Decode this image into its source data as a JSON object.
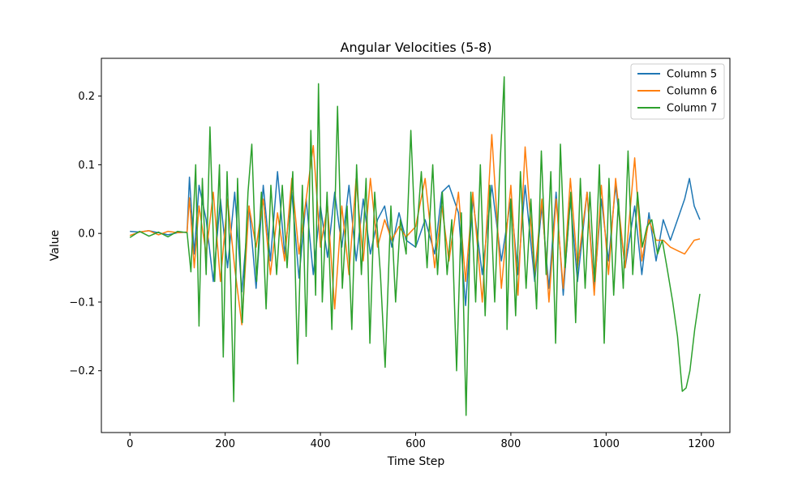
{
  "chart_data": {
    "type": "line",
    "title": "Angular Velocities (5-8)",
    "xlabel": "Time Step",
    "ylabel": "Value",
    "xlim": [
      -60,
      1260
    ],
    "ylim": [
      -0.29,
      0.255
    ],
    "xticks": [
      0,
      200,
      400,
      600,
      800,
      1000,
      1200
    ],
    "yticks": [
      -0.2,
      -0.1,
      0.0,
      0.1,
      0.2
    ],
    "xtick_labels": [
      "0",
      "200",
      "400",
      "600",
      "800",
      "1000",
      "1200"
    ],
    "ytick_labels": [
      "−0.2",
      "−0.1",
      "0.0",
      "0.1",
      "0.2"
    ],
    "grid": false,
    "legend_position": "top-right",
    "series": [
      {
        "name": "Column 5",
        "color": "#1f77b4",
        "x": [
          0,
          20,
          40,
          60,
          80,
          100,
          120,
          125,
          135,
          145,
          160,
          175,
          190,
          205,
          220,
          235,
          250,
          265,
          280,
          295,
          310,
          325,
          340,
          355,
          370,
          385,
          400,
          415,
          430,
          445,
          460,
          475,
          490,
          505,
          520,
          535,
          550,
          565,
          580,
          600,
          620,
          640,
          655,
          670,
          690,
          705,
          720,
          740,
          760,
          780,
          800,
          815,
          830,
          850,
          865,
          880,
          895,
          910,
          925,
          940,
          960,
          975,
          990,
          1005,
          1020,
          1040,
          1060,
          1075,
          1090,
          1105,
          1120,
          1135,
          1150,
          1165,
          1175,
          1185,
          1197
        ],
        "y": [
          0.003,
          0.002,
          0.004,
          0.001,
          -0.002,
          0.001,
          0.002,
          0.082,
          -0.03,
          0.07,
          0.02,
          -0.07,
          0.05,
          -0.05,
          0.06,
          -0.085,
          0.04,
          -0.08,
          0.07,
          -0.04,
          0.09,
          -0.03,
          0.06,
          -0.065,
          0.05,
          -0.06,
          0.04,
          -0.035,
          0.06,
          -0.02,
          0.07,
          -0.04,
          0.05,
          -0.03,
          0.02,
          0.04,
          -0.02,
          0.03,
          -0.01,
          -0.02,
          0.02,
          -0.03,
          0.06,
          0.07,
          0.03,
          -0.105,
          0.05,
          -0.06,
          0.07,
          -0.04,
          0.05,
          -0.06,
          0.07,
          -0.07,
          0.04,
          -0.08,
          0.06,
          -0.09,
          0.05,
          -0.07,
          0.06,
          -0.08,
          0.05,
          -0.04,
          0.07,
          -0.05,
          0.04,
          -0.06,
          0.03,
          -0.04,
          0.02,
          -0.01,
          0.02,
          0.05,
          0.08,
          0.04,
          0.02
        ]
      },
      {
        "name": "Column 6",
        "color": "#ff7f0e",
        "x": [
          0,
          20,
          40,
          60,
          80,
          100,
          120,
          125,
          135,
          145,
          160,
          175,
          190,
          205,
          220,
          235,
          250,
          265,
          280,
          295,
          310,
          325,
          340,
          355,
          370,
          385,
          400,
          415,
          430,
          445,
          460,
          475,
          490,
          505,
          520,
          535,
          550,
          565,
          580,
          600,
          620,
          640,
          655,
          670,
          690,
          705,
          720,
          740,
          760,
          780,
          800,
          815,
          830,
          850,
          865,
          880,
          895,
          910,
          925,
          940,
          960,
          975,
          990,
          1005,
          1020,
          1040,
          1060,
          1075,
          1090,
          1105,
          1120,
          1135,
          1150,
          1165,
          1175,
          1185,
          1197
        ],
        "y": [
          -0.003,
          0.002,
          0.004,
          -0.002,
          0.003,
          0.001,
          0.002,
          0.052,
          -0.05,
          0.04,
          -0.03,
          0.06,
          -0.07,
          0.05,
          -0.05,
          -0.133,
          0.04,
          -0.02,
          0.05,
          -0.06,
          0.03,
          -0.04,
          0.08,
          -0.03,
          0.05,
          0.128,
          -0.02,
          0.04,
          -0.11,
          0.04,
          -0.06,
          0.08,
          -0.04,
          0.08,
          -0.02,
          0.02,
          -0.01,
          0.01,
          -0.005,
          0.01,
          0.08,
          -0.05,
          0.04,
          -0.04,
          0.06,
          -0.07,
          0.06,
          -0.1,
          0.144,
          -0.08,
          0.07,
          -0.09,
          0.126,
          -0.06,
          0.05,
          -0.1,
          0.05,
          -0.08,
          0.08,
          -0.05,
          0.06,
          -0.09,
          0.07,
          -0.06,
          0.08,
          -0.05,
          0.11,
          -0.04,
          0.02,
          -0.01,
          -0.01,
          -0.02,
          -0.025,
          -0.03,
          -0.02,
          -0.01,
          -0.008
        ]
      },
      {
        "name": "Column 7",
        "color": "#2ca02c",
        "x": [
          0,
          20,
          40,
          60,
          80,
          100,
          120,
          128,
          138,
          145,
          152,
          160,
          168,
          178,
          188,
          196,
          204,
          212,
          218,
          226,
          236,
          248,
          256,
          266,
          276,
          286,
          296,
          308,
          320,
          330,
          342,
          352,
          362,
          370,
          380,
          390,
          396,
          404,
          414,
          424,
          436,
          446,
          456,
          466,
          476,
          486,
          496,
          504,
          514,
          526,
          536,
          548,
          558,
          568,
          580,
          590,
          600,
          612,
          624,
          636,
          646,
          656,
          666,
          676,
          686,
          696,
          706,
          716,
          726,
          736,
          746,
          756,
          766,
          776,
          786,
          792,
          800,
          810,
          820,
          832,
          842,
          854,
          864,
          874,
          884,
          894,
          904,
          914,
          926,
          936,
          946,
          956,
          966,
          976,
          986,
          996,
          1006,
          1016,
          1026,
          1036,
          1046,
          1056,
          1066,
          1076,
          1086,
          1096,
          1108,
          1118,
          1128,
          1140,
          1150,
          1160,
          1168,
          1176,
          1186,
          1197
        ],
        "y": [
          -0.006,
          0.003,
          -0.004,
          0.002,
          -0.005,
          0.003,
          0.001,
          -0.056,
          0.1,
          -0.135,
          0.08,
          -0.06,
          0.155,
          -0.07,
          0.1,
          -0.18,
          0.09,
          -0.08,
          -0.245,
          0.08,
          -0.13,
          0.06,
          0.13,
          -0.07,
          0.06,
          -0.11,
          0.07,
          -0.06,
          0.07,
          -0.05,
          0.09,
          -0.19,
          0.07,
          -0.15,
          0.15,
          -0.09,
          0.218,
          -0.1,
          0.06,
          -0.14,
          0.185,
          -0.08,
          0.04,
          -0.14,
          0.1,
          -0.06,
          0.08,
          -0.16,
          0.06,
          -0.06,
          -0.195,
          0.04,
          -0.1,
          0.02,
          -0.03,
          0.15,
          -0.02,
          0.09,
          -0.05,
          0.1,
          -0.06,
          0.06,
          -0.06,
          0.02,
          -0.2,
          0.03,
          -0.265,
          0.06,
          -0.1,
          0.1,
          -0.12,
          0.07,
          -0.1,
          0.08,
          0.228,
          -0.14,
          0.05,
          -0.12,
          0.09,
          -0.08,
          0.05,
          -0.11,
          0.12,
          -0.06,
          0.09,
          -0.16,
          0.13,
          -0.05,
          0.06,
          -0.13,
          0.08,
          -0.08,
          0.06,
          -0.07,
          0.1,
          -0.16,
          0.08,
          -0.09,
          0.05,
          -0.08,
          0.12,
          -0.06,
          0.06,
          -0.02,
          0.01,
          0.02,
          -0.03,
          -0.01,
          -0.05,
          -0.1,
          -0.15,
          -0.23,
          -0.225,
          -0.2,
          -0.14,
          -0.088
        ]
      }
    ]
  }
}
